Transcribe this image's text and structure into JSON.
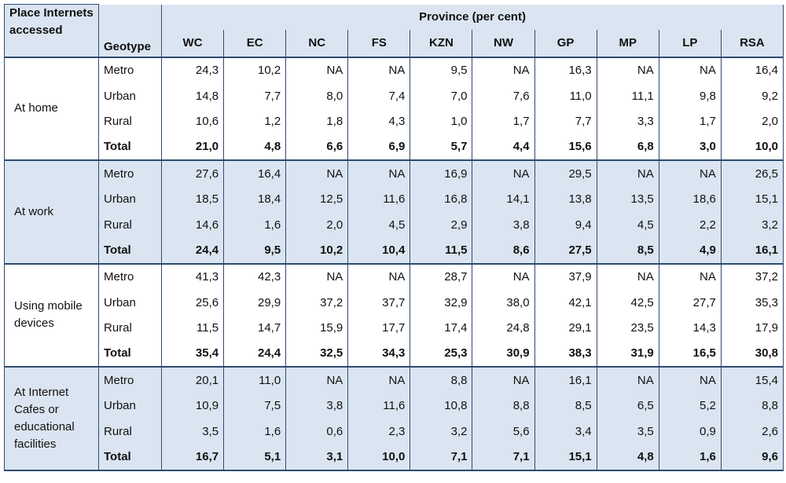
{
  "header": {
    "place": "Place Internets accessed",
    "geotype": "Geotype",
    "province": "Province (per cent)",
    "columns": [
      "WC",
      "EC",
      "NC",
      "FS",
      "KZN",
      "NW",
      "GP",
      "MP",
      "LP",
      "RSA"
    ]
  },
  "groups": [
    {
      "label": "At home",
      "rows": [
        {
          "geotype": "Metro",
          "values": [
            "24,3",
            "10,2",
            "NA",
            "NA",
            "9,5",
            "NA",
            "16,3",
            "NA",
            "NA",
            "16,4"
          ]
        },
        {
          "geotype": "Urban",
          "values": [
            "14,8",
            "7,7",
            "8,0",
            "7,4",
            "7,0",
            "7,6",
            "11,0",
            "11,1",
            "9,8",
            "9,2"
          ]
        },
        {
          "geotype": "Rural",
          "values": [
            "10,6",
            "1,2",
            "1,8",
            "4,3",
            "1,0",
            "1,7",
            "7,7",
            "3,3",
            "1,7",
            "2,0"
          ]
        },
        {
          "geotype": "Total",
          "values": [
            "21,0",
            "4,8",
            "6,6",
            "6,9",
            "5,7",
            "4,4",
            "15,6",
            "6,8",
            "3,0",
            "10,0"
          ]
        }
      ]
    },
    {
      "label": "At work",
      "rows": [
        {
          "geotype": "Metro",
          "values": [
            "27,6",
            "16,4",
            "NA",
            "NA",
            "16,9",
            "NA",
            "29,5",
            "NA",
            "NA",
            "26,5"
          ]
        },
        {
          "geotype": "Urban",
          "values": [
            "18,5",
            "18,4",
            "12,5",
            "11,6",
            "16,8",
            "14,1",
            "13,8",
            "13,5",
            "18,6",
            "15,1"
          ]
        },
        {
          "geotype": "Rural",
          "values": [
            "14,6",
            "1,6",
            "2,0",
            "4,5",
            "2,9",
            "3,8",
            "9,4",
            "4,5",
            "2,2",
            "3,2"
          ]
        },
        {
          "geotype": "Total",
          "values": [
            "24,4",
            "9,5",
            "10,2",
            "10,4",
            "11,5",
            "8,6",
            "27,5",
            "8,5",
            "4,9",
            "16,1"
          ]
        }
      ]
    },
    {
      "label": "Using mobile devices",
      "rows": [
        {
          "geotype": "Metro",
          "values": [
            "41,3",
            "42,3",
            "NA",
            "NA",
            "28,7",
            "NA",
            "37,9",
            "NA",
            "NA",
            "37,2"
          ]
        },
        {
          "geotype": "Urban",
          "values": [
            "25,6",
            "29,9",
            "37,2",
            "37,7",
            "32,9",
            "38,0",
            "42,1",
            "42,5",
            "27,7",
            "35,3"
          ]
        },
        {
          "geotype": "Rural",
          "values": [
            "11,5",
            "14,7",
            "15,9",
            "17,7",
            "17,4",
            "24,8",
            "29,1",
            "23,5",
            "14,3",
            "17,9"
          ]
        },
        {
          "geotype": "Total",
          "values": [
            "35,4",
            "24,4",
            "32,5",
            "34,3",
            "25,3",
            "30,9",
            "38,3",
            "31,9",
            "16,5",
            "30,8"
          ]
        }
      ]
    },
    {
      "label": "At Internet Cafes or educational facilities",
      "rows": [
        {
          "geotype": "Metro",
          "values": [
            "20,1",
            "11,0",
            "NA",
            "NA",
            "8,8",
            "NA",
            "16,1",
            "NA",
            "NA",
            "15,4"
          ]
        },
        {
          "geotype": "Urban",
          "values": [
            "10,9",
            "7,5",
            "3,8",
            "11,6",
            "10,8",
            "8,8",
            "8,5",
            "6,5",
            "5,2",
            "8,8"
          ]
        },
        {
          "geotype": "Rural",
          "values": [
            "3,5",
            "1,6",
            "0,6",
            "2,3",
            "3,2",
            "5,6",
            "3,4",
            "3,5",
            "0,9",
            "2,6"
          ]
        },
        {
          "geotype": "Total",
          "values": [
            "16,7",
            "5,1",
            "3,1",
            "10,0",
            "7,1",
            "7,1",
            "15,1",
            "4,8",
            "1,6",
            "9,6"
          ]
        }
      ]
    }
  ]
}
